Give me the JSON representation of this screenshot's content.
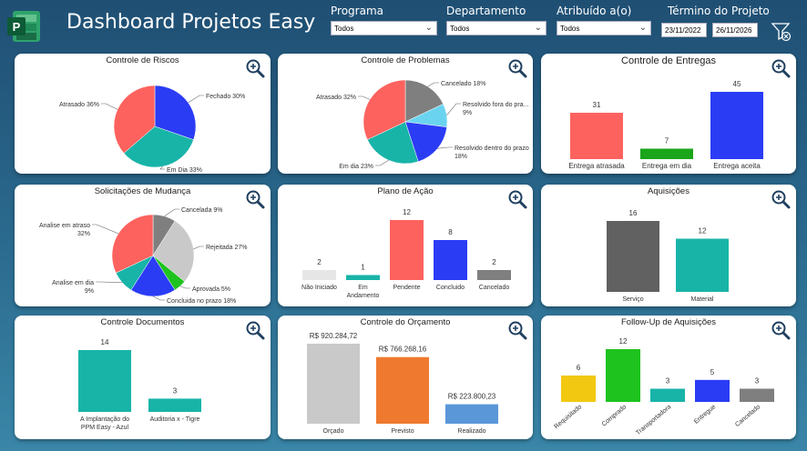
{
  "header": {
    "title": "Dashboard Projetos Easy",
    "filters": [
      {
        "label": "Programa",
        "value": "Todos"
      },
      {
        "label": "Departamento",
        "value": "Todos"
      },
      {
        "label": "Atribuído a(o)",
        "value": "Todos"
      }
    ],
    "date_range": {
      "label": "Término do Projeto",
      "start": "23/11/2022",
      "end": "26/11/2026"
    }
  },
  "colors": {
    "red": "#fd625e",
    "blue": "#2b3cf5",
    "teal": "#18b4a8",
    "gray": "#7f7f7f",
    "lightgray": "#c9c9c9",
    "lightblue": "#6ad4f0",
    "green": "#1ec31e",
    "orange": "#ef7a2f",
    "yellow": "#f2c811",
    "steel": "#5a97d9",
    "darkgray": "#616161"
  },
  "chart_data": [
    {
      "id": "riscos",
      "type": "pie",
      "title": "Controle de Riscos",
      "slices": [
        {
          "label": "Fechado 30%",
          "value": 30,
          "color": "#2b3cf5"
        },
        {
          "label": "Em Dia 33%",
          "value": 33,
          "color": "#18b4a8"
        },
        {
          "label": "Atrasado 36%",
          "value": 36,
          "color": "#fd625e"
        }
      ]
    },
    {
      "id": "problemas",
      "type": "pie",
      "title": "Controle de Problemas",
      "slices": [
        {
          "label": "Cancelado 18%",
          "value": 18,
          "color": "#7f7f7f"
        },
        {
          "label": "Resolvido fora do pra... 9%",
          "value": 9,
          "color": "#6ad4f0"
        },
        {
          "label": "Resolvido dentro do prazo 18%",
          "value": 18,
          "color": "#2b3cf5"
        },
        {
          "label": "Em dia 23%",
          "value": 23,
          "color": "#18b4a8"
        },
        {
          "label": "Atrasado 32%",
          "value": 32,
          "color": "#fd625e"
        }
      ]
    },
    {
      "id": "entregas",
      "type": "bar",
      "title": "Controle de Entregas",
      "categories": [
        "Entrega atrasada",
        "Entrega em dia",
        "Entrega aceita"
      ],
      "values": [
        31,
        7,
        45
      ],
      "colors": [
        "#fd625e",
        "#1aa51a",
        "#2b3cf5"
      ]
    },
    {
      "id": "mudanca",
      "type": "pie",
      "title": "Solicitações de Mudança",
      "slices": [
        {
          "label": "Cancelada 9%",
          "value": 9,
          "color": "#7f7f7f"
        },
        {
          "label": "Rejeitada 27%",
          "value": 27,
          "color": "#c9c9c9"
        },
        {
          "label": "Aprovada 5%",
          "value": 5,
          "color": "#1ec31e"
        },
        {
          "label": "Concluida no prazo 18%",
          "value": 18,
          "color": "#2b3cf5"
        },
        {
          "label": "Analise em dia 9%",
          "value": 9,
          "color": "#18b4a8"
        },
        {
          "label": "Analise em atraso 32%",
          "value": 32,
          "color": "#fd625e"
        }
      ]
    },
    {
      "id": "plano",
      "type": "bar",
      "title": "Plano de Ação",
      "categories": [
        "Não Iniciado",
        "Em Andamento",
        "Pendente",
        "Concluido",
        "Cancelado"
      ],
      "values": [
        2,
        1,
        12,
        8,
        2
      ],
      "colors": [
        "#e6e6e6",
        "#18b4a8",
        "#fd625e",
        "#2b3cf5",
        "#7f7f7f"
      ]
    },
    {
      "id": "aquisicoes",
      "type": "bar",
      "title": "Aquisições",
      "categories": [
        "Serviço",
        "Material"
      ],
      "values": [
        16,
        12
      ],
      "colors": [
        "#616161",
        "#18b4a8"
      ]
    },
    {
      "id": "documentos",
      "type": "bar",
      "title": "Controle Documentos",
      "categories": [
        "A Implantação do PPM Easy - Azul",
        "Auditoria x - Tigre"
      ],
      "values": [
        14,
        3
      ],
      "colors": [
        "#18b4a8",
        "#18b4a8"
      ]
    },
    {
      "id": "orcamento",
      "type": "bar",
      "title": "Controle do Orçamento",
      "categories": [
        "Orçado",
        "Previsto",
        "Realizado"
      ],
      "values": [
        920284.72,
        766268.16,
        223800.23
      ],
      "value_labels": [
        "R$ 920.284,72",
        "R$ 766.268,16",
        "R$ 223.800,23"
      ],
      "colors": [
        "#c9c9c9",
        "#ef7a2f",
        "#5a97d9"
      ]
    },
    {
      "id": "followup",
      "type": "bar",
      "title": "Follow-Up de Aquisições",
      "categories": [
        "Requisitado",
        "Comprado",
        "Transportadora",
        "Entregue",
        "Cancelado"
      ],
      "values": [
        6,
        12,
        3,
        5,
        3
      ],
      "colors": [
        "#f2c811",
        "#1ec31e",
        "#18b4a8",
        "#2b3cf5",
        "#7f7f7f"
      ]
    }
  ]
}
